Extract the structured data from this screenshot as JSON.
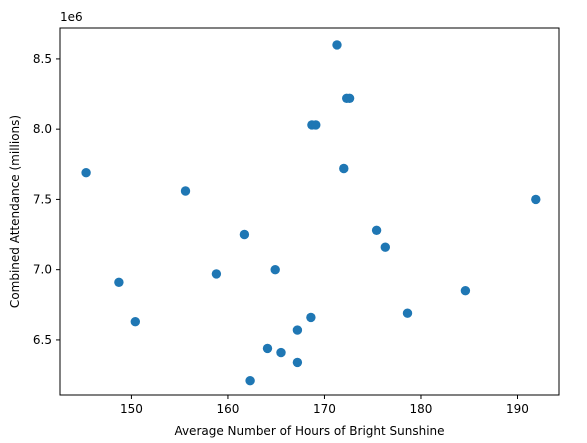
{
  "chart_data": {
    "type": "scatter",
    "xlabel": "Average Number of Hours of Bright Sunshine",
    "ylabel": "Combined Attendance (millions)",
    "offset_label": "1e6",
    "xlim": [
      142.6,
      194.3
    ],
    "ylim": [
      6.108,
      8.72
    ],
    "xticks": [
      150,
      160,
      170,
      180,
      190
    ],
    "xtick_labels": [
      "150",
      "160",
      "170",
      "180",
      "190"
    ],
    "yticks": [
      6.5,
      7.0,
      7.5,
      8.0,
      8.5
    ],
    "ytick_labels": [
      "6.5",
      "7.0",
      "7.5",
      "8.0",
      "8.5"
    ],
    "y_unit": 1000000,
    "grid": false,
    "marker_color": "#1f77b4",
    "points": [
      {
        "x": 145.3,
        "y": 7.69
      },
      {
        "x": 148.7,
        "y": 6.91
      },
      {
        "x": 150.4,
        "y": 6.63
      },
      {
        "x": 155.6,
        "y": 7.56
      },
      {
        "x": 158.8,
        "y": 6.97
      },
      {
        "x": 161.7,
        "y": 7.25
      },
      {
        "x": 162.3,
        "y": 6.21
      },
      {
        "x": 164.1,
        "y": 6.44
      },
      {
        "x": 164.9,
        "y": 7.0
      },
      {
        "x": 165.5,
        "y": 6.41
      },
      {
        "x": 167.2,
        "y": 6.57
      },
      {
        "x": 167.2,
        "y": 6.34
      },
      {
        "x": 168.6,
        "y": 6.66
      },
      {
        "x": 168.7,
        "y": 8.03
      },
      {
        "x": 169.1,
        "y": 8.03
      },
      {
        "x": 171.3,
        "y": 8.6
      },
      {
        "x": 172.0,
        "y": 7.72
      },
      {
        "x": 172.3,
        "y": 8.22
      },
      {
        "x": 172.6,
        "y": 8.22
      },
      {
        "x": 175.4,
        "y": 7.28
      },
      {
        "x": 176.3,
        "y": 7.16
      },
      {
        "x": 178.6,
        "y": 6.69
      },
      {
        "x": 184.6,
        "y": 6.85
      },
      {
        "x": 191.9,
        "y": 7.5
      }
    ]
  }
}
